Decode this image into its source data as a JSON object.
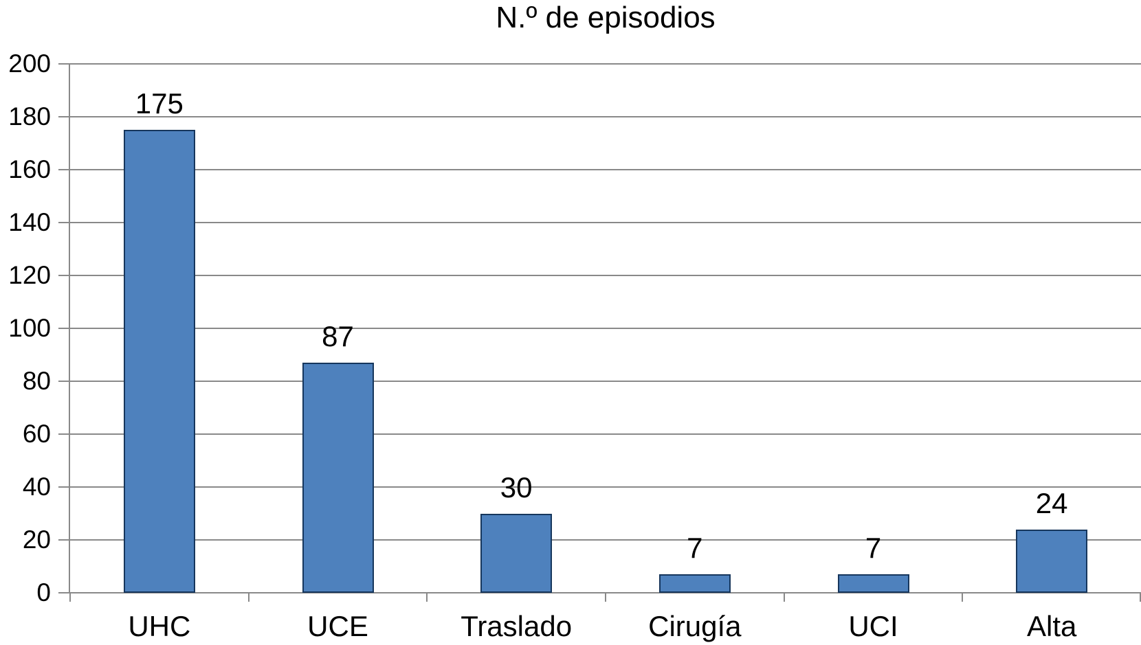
{
  "title": "N.º de episodios",
  "colors": {
    "bar_fill": "#4E81BD",
    "bar_border": "#16365C",
    "gridline": "#898989",
    "axis": "#898989",
    "text": "#000000",
    "background": "#FFFFFF"
  },
  "chart_data": {
    "type": "bar",
    "title": "N.º de episodios",
    "categories": [
      "UHC",
      "UCE",
      "Traslado",
      "Cirugía",
      "UCI",
      "Alta"
    ],
    "values": [
      175,
      87,
      30,
      7,
      7,
      24
    ],
    "data_labels": [
      "175",
      "87",
      "30",
      "7",
      "7",
      "24"
    ],
    "xlabel": "",
    "ylabel": "",
    "ylim": [
      0,
      200
    ],
    "ytick_interval": 20,
    "yticks": [
      0,
      20,
      40,
      60,
      80,
      100,
      120,
      140,
      160,
      180,
      200
    ],
    "grid": true,
    "legend": false,
    "layout": "single series, vertical bars, data labels above bars, horizontal gridlines every 20"
  }
}
